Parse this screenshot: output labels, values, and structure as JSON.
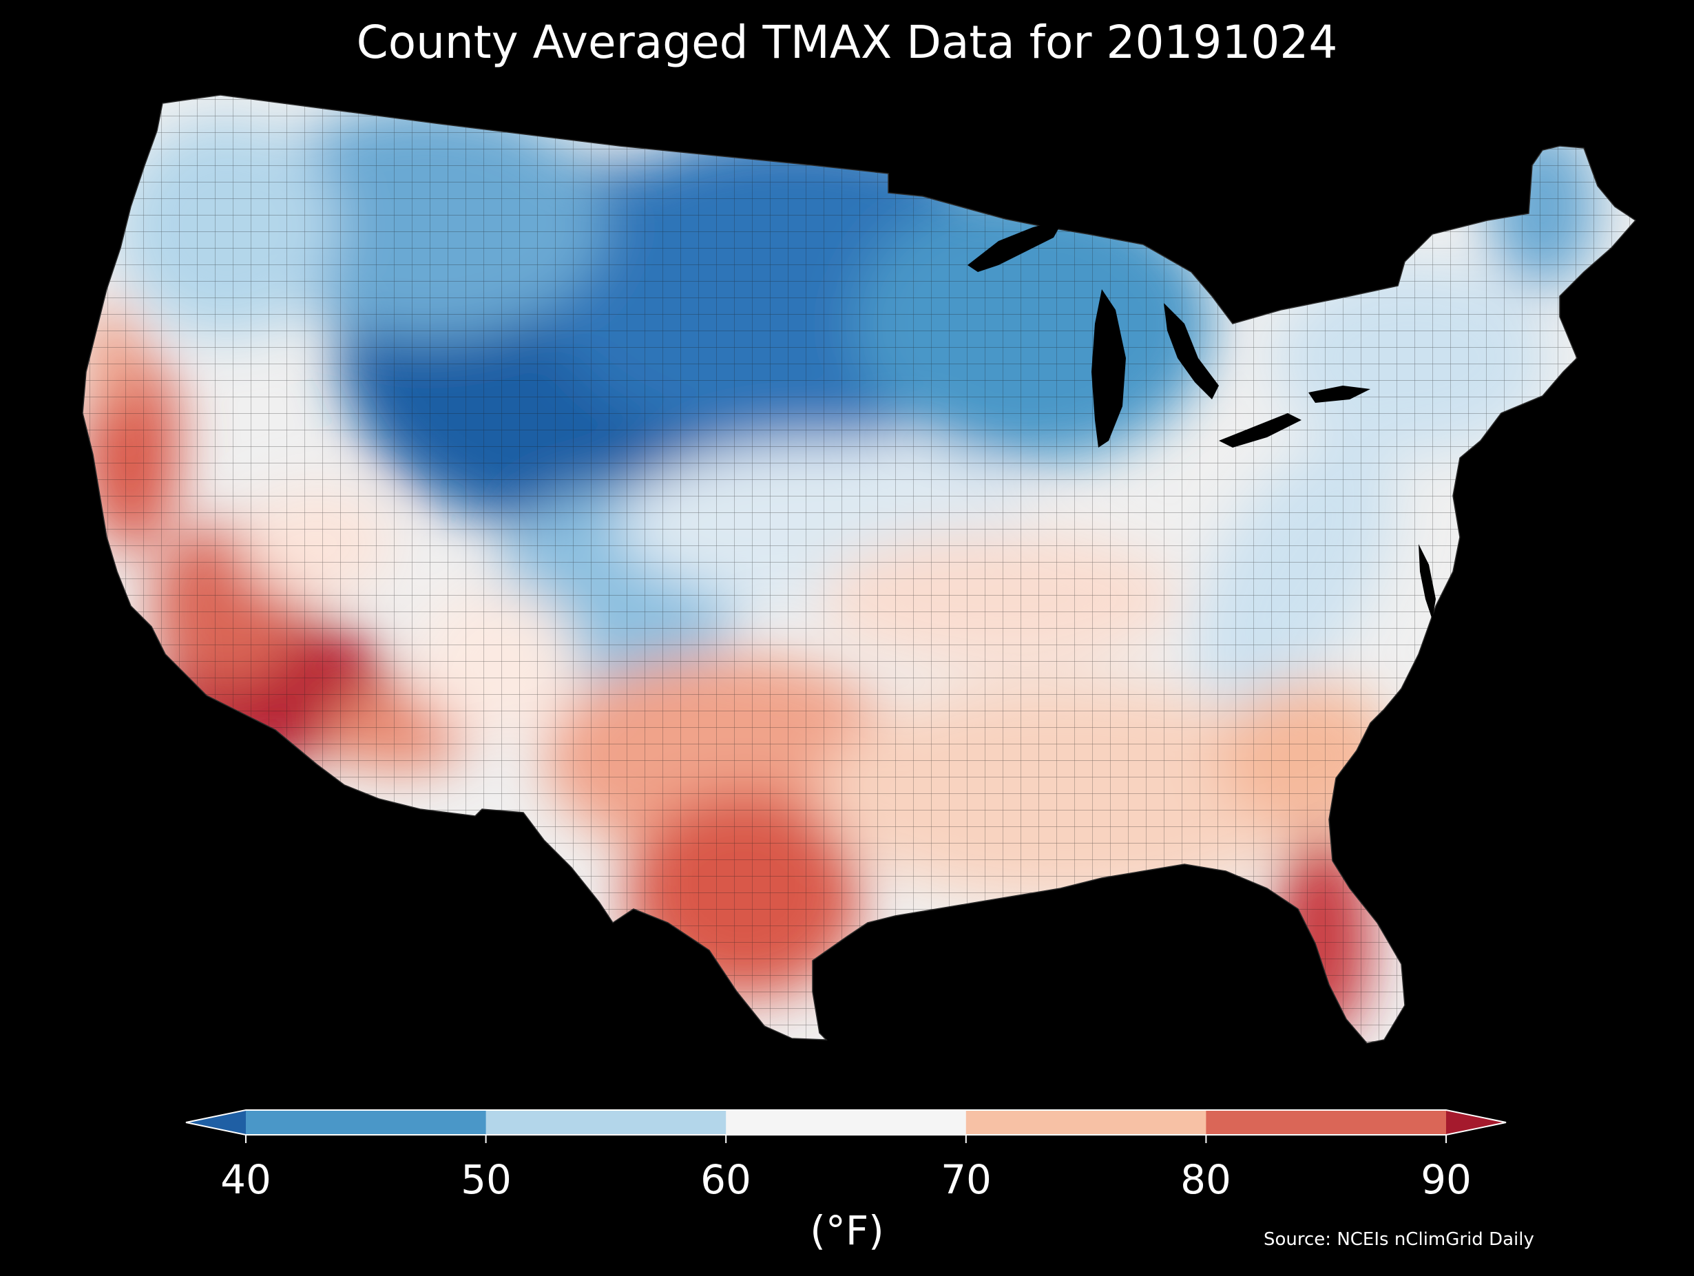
{
  "title": "County Averaged TMAX Data for 20191024",
  "colorbar": {
    "ticks": [
      "40",
      "50",
      "60",
      "70",
      "80",
      "90"
    ],
    "units": "(°F)",
    "bins": [
      {
        "range": "<40",
        "color": "#1f5fa4"
      },
      {
        "range": "40-50",
        "color": "#4a97c8"
      },
      {
        "range": "50-60",
        "color": "#b3d6ea"
      },
      {
        "range": "60-70",
        "color": "#f5f5f5"
      },
      {
        "range": "70-80",
        "color": "#f7c1a5"
      },
      {
        "range": "80-90",
        "color": "#da6657"
      },
      {
        "range": ">90",
        "color": "#a51a2d"
      }
    ]
  },
  "source": "Source: NCEIs nClimGrid Daily",
  "colors": {
    "background": "#000000",
    "county_border": "#222222"
  }
}
